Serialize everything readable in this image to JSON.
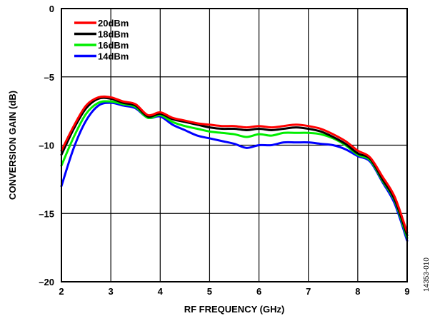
{
  "chart_data": {
    "type": "line",
    "xlabel": "RF FREQUENCY (GHz)",
    "ylabel": "CONVERSION GAIN (dB)",
    "xlim": [
      2,
      9
    ],
    "ylim": [
      -20,
      0
    ],
    "xticks": [
      "2",
      "3",
      "4",
      "5",
      "6",
      "7",
      "8",
      "9"
    ],
    "yticks": [
      "0",
      "–5",
      "–10",
      "–15",
      "–20"
    ],
    "xtick_values": [
      2,
      3,
      4,
      5,
      6,
      7,
      8,
      9
    ],
    "ytick_values": [
      0,
      -5,
      -10,
      -15,
      -20
    ],
    "grid": true,
    "legend_position": "top-left",
    "figure_id": "14353-010",
    "x": [
      2.0,
      2.25,
      2.5,
      2.75,
      3.0,
      3.25,
      3.5,
      3.75,
      4.0,
      4.25,
      4.5,
      4.75,
      5.0,
      5.25,
      5.5,
      5.75,
      6.0,
      6.25,
      6.5,
      6.75,
      7.0,
      7.25,
      7.5,
      7.75,
      8.0,
      8.25,
      8.5,
      8.75,
      9.0
    ],
    "series": [
      {
        "name": "20dBm",
        "color": "#ff0000",
        "values": [
          -10.4,
          -8.6,
          -7.1,
          -6.5,
          -6.5,
          -6.8,
          -7.0,
          -7.8,
          -7.6,
          -8.0,
          -8.2,
          -8.4,
          -8.5,
          -8.6,
          -8.6,
          -8.7,
          -8.6,
          -8.7,
          -8.6,
          -8.5,
          -8.6,
          -8.8,
          -9.2,
          -9.7,
          -10.4,
          -10.9,
          -12.3,
          -13.8,
          -16.4
        ]
      },
      {
        "name": "18dBm",
        "color": "#000000",
        "values": [
          -10.7,
          -8.8,
          -7.3,
          -6.6,
          -6.6,
          -6.9,
          -7.1,
          -7.9,
          -7.7,
          -8.1,
          -8.3,
          -8.5,
          -8.7,
          -8.8,
          -8.8,
          -8.9,
          -8.8,
          -8.9,
          -8.8,
          -8.7,
          -8.8,
          -9.0,
          -9.4,
          -9.9,
          -10.6,
          -11.0,
          -12.5,
          -14.0,
          -16.6
        ]
      },
      {
        "name": "16dBm",
        "color": "#00ee00",
        "values": [
          -11.5,
          -9.4,
          -7.7,
          -6.9,
          -6.8,
          -7.0,
          -7.2,
          -8.0,
          -7.8,
          -8.3,
          -8.6,
          -8.8,
          -9.0,
          -9.1,
          -9.2,
          -9.4,
          -9.2,
          -9.3,
          -9.1,
          -9.1,
          -9.1,
          -9.2,
          -9.5,
          -10.0,
          -10.7,
          -11.1,
          -12.6,
          -14.1,
          -16.8
        ]
      },
      {
        "name": "14dBm",
        "color": "#0000ff",
        "values": [
          -13.0,
          -10.2,
          -8.2,
          -7.1,
          -6.9,
          -7.1,
          -7.3,
          -8.0,
          -7.9,
          -8.5,
          -8.9,
          -9.3,
          -9.5,
          -9.7,
          -9.9,
          -10.2,
          -10.0,
          -10.0,
          -9.8,
          -9.8,
          -9.8,
          -9.9,
          -10.0,
          -10.3,
          -10.8,
          -11.2,
          -12.7,
          -14.3,
          -17.0
        ]
      }
    ]
  }
}
